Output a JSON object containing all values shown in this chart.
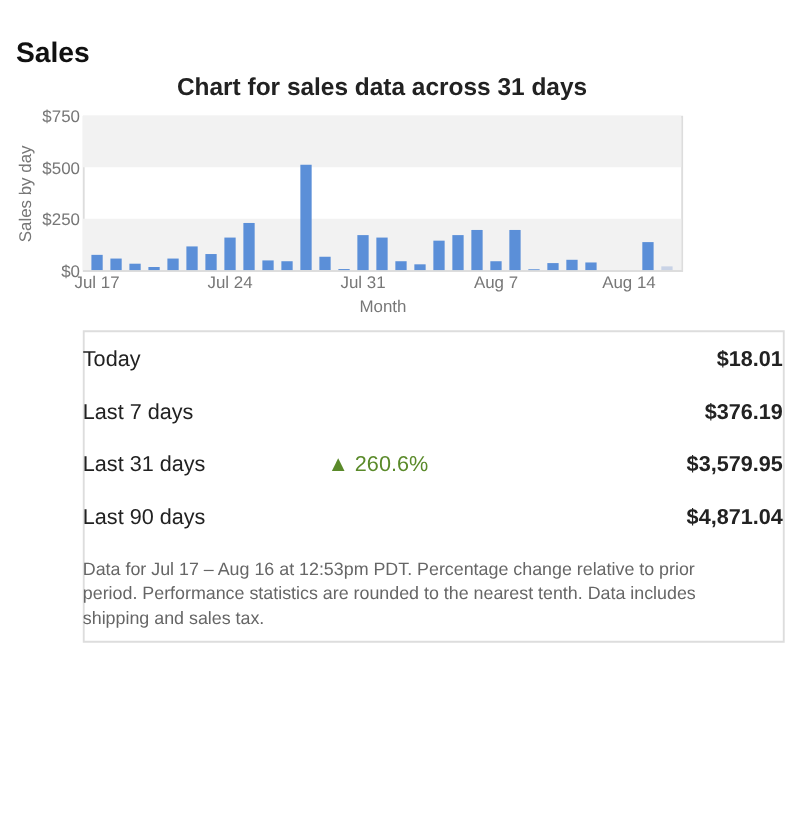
{
  "chart_data": {
    "type": "bar",
    "title": "Sales",
    "subtitle": "Chart for sales data across 31 days",
    "xlabel": "Month",
    "ylabel": "Sales by day",
    "categories": [
      "Jul 17",
      null,
      null,
      null,
      null,
      null,
      null,
      "Jul 24",
      null,
      null,
      null,
      null,
      null,
      null,
      "Jul 31",
      null,
      null,
      null,
      null,
      null,
      null,
      "Aug 7",
      null,
      null,
      null,
      null,
      null,
      null,
      "Aug 14",
      null,
      null
    ],
    "values": [
      74,
      56,
      31,
      15,
      56,
      115,
      78,
      158,
      229,
      47,
      43,
      512,
      65,
      5,
      170,
      158,
      43,
      28,
      143,
      170,
      195,
      43,
      195,
      4,
      34,
      50,
      37,
      0,
      0,
      136,
      18
    ],
    "colors": [
      "#5b8fd8",
      "#5b8fd8",
      "#5b8fd8",
      "#5b8fd8",
      "#5b8fd8",
      "#5b8fd8",
      "#5b8fd8",
      "#5b8fd8",
      "#5b8fd8",
      "#5b8fd8",
      "#5b8fd8",
      "#5b8fd8",
      "#5b8fd8",
      "#5b8fd8",
      "#5b8fd8",
      "#5b8fd8",
      "#5b8fd8",
      "#5b8fd8",
      "#5b8fd8",
      "#5b8fd8",
      "#5b8fd8",
      "#5b8fd8",
      "#5b8fd8",
      "#5b8fd8",
      "#5b8fd8",
      "#5b8fd8",
      "#5b8fd8",
      "#5b8fd8",
      "#5b8fd8",
      "#5b8fd8",
      "#c9d3e6"
    ],
    "ylim": [
      0,
      750
    ],
    "yticks": [
      {
        "value": 0,
        "label": "$0"
      },
      {
        "value": 250,
        "label": "$250"
      },
      {
        "value": 500,
        "label": "$500"
      },
      {
        "value": 750,
        "label": "$750"
      }
    ],
    "bands": [
      {
        "axis": "y",
        "from": 0,
        "to": 250,
        "color": "#f2f2f2"
      },
      {
        "axis": "y",
        "from": 500,
        "to": 750,
        "color": "#f2f2f2"
      }
    ],
    "grid": false,
    "annotations": [
      "Today",
      "$18.01",
      "Last 7 days",
      "$376.19",
      "Last 31 days",
      "▲ 260.6%",
      "$3,579.95",
      "Last 90 days",
      "$4,871.04",
      "Data for Jul 17 – Aug 16 at 12:53pm PDT. Percentage change relative to prior period. Performance statistics are rounded to the nearest tenth. Data includes shipping and sales tax."
    ]
  }
}
